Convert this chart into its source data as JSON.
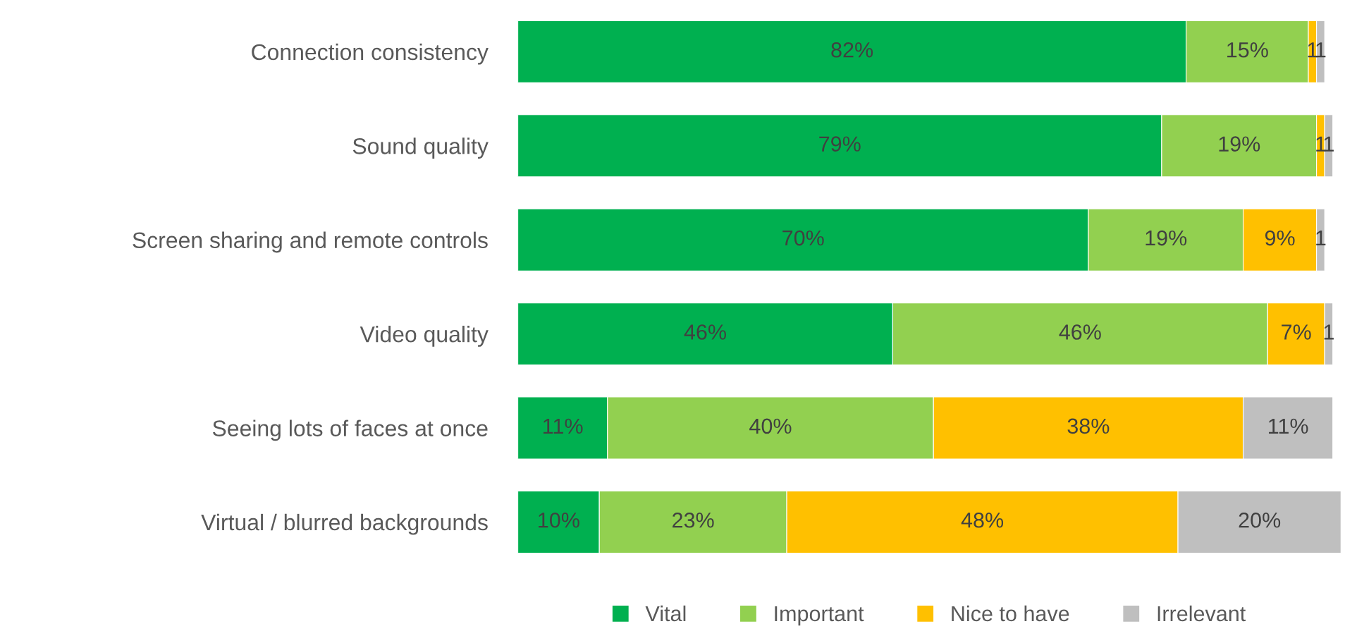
{
  "chart_data": {
    "type": "bar",
    "orientation": "horizontal",
    "stacked": true,
    "legend": "bottom",
    "grid": false,
    "categories": [
      "Connection consistency",
      "Sound quality",
      "Screen sharing and remote controls",
      "Video quality",
      "Seeing lots of faces at once",
      "Virtual / blurred backgrounds"
    ],
    "series": [
      {
        "name": "Vital",
        "color": "#00b050",
        "values": [
          82,
          79,
          70,
          46,
          11,
          10
        ],
        "value_labels": [
          "82%",
          "79%",
          "70%",
          "46%",
          "11%",
          "10%"
        ]
      },
      {
        "name": "Important",
        "color": "#92d050",
        "values": [
          15,
          19,
          19,
          46,
          40,
          23
        ],
        "value_labels": [
          "15%",
          "19%",
          "19%",
          "46%",
          "40%",
          "23%"
        ]
      },
      {
        "name": "Nice to have",
        "color": "#ffc000",
        "values": [
          1,
          1,
          9,
          7,
          38,
          48
        ],
        "value_labels": [
          "1",
          "1",
          "9%",
          "7%",
          "38%",
          "48%"
        ]
      },
      {
        "name": "Irrelevant",
        "color": "#bfbfbf",
        "values": [
          1,
          1,
          1,
          1,
          11,
          20
        ],
        "value_labels": [
          "1",
          "1",
          "1",
          "1",
          "11%",
          "20%"
        ]
      }
    ]
  }
}
